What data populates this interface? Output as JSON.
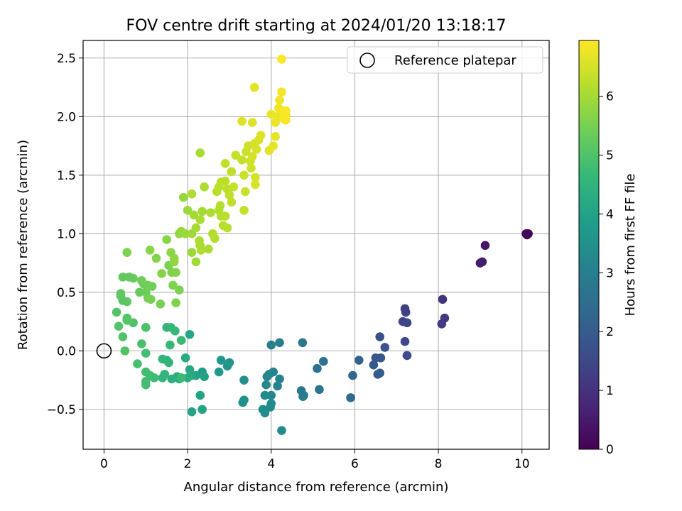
{
  "chart_data": {
    "type": "scatter",
    "title": "FOV centre drift starting at 2024/01/20 13:18:17",
    "xlabel": "Angular distance from reference (arcmin)",
    "ylabel": "Rotation from reference (arcmin)",
    "xlim": [
      -0.5,
      10.65
    ],
    "ylim": [
      -0.84,
      2.65
    ],
    "xticks": [
      0,
      2,
      4,
      6,
      8,
      10
    ],
    "yticks": [
      -0.5,
      0.0,
      0.5,
      1.0,
      1.5,
      2.0,
      2.5
    ],
    "xtick_labels": [
      "0",
      "2",
      "4",
      "6",
      "8",
      "10"
    ],
    "ytick_labels": [
      "−0.5",
      "0.0",
      "0.5",
      "1.0",
      "1.5",
      "2.0",
      "2.5"
    ],
    "grid": true,
    "legend": {
      "position": "top-right",
      "label": "Reference platepar",
      "marker": "open-circle"
    },
    "reference_point": [
      0,
      0
    ],
    "colorbar": {
      "label": "Hours from first FF file",
      "colormap": "viridis",
      "min": 0,
      "max": 6.95,
      "ticks": [
        0,
        1,
        2,
        3,
        4,
        5,
        6
      ],
      "tick_labels": [
        "0",
        "1",
        "2",
        "3",
        "4",
        "5",
        "6"
      ]
    },
    "points": [
      [
        10.1,
        1.0,
        0.02
      ],
      [
        10.15,
        1.0,
        0.04
      ],
      [
        10.12,
        0.99,
        0.06
      ],
      [
        9.12,
        0.9,
        0.4
      ],
      [
        9.0,
        0.75,
        0.5
      ],
      [
        9.05,
        0.76,
        0.55
      ],
      [
        8.1,
        0.44,
        1.0
      ],
      [
        8.15,
        0.28,
        1.1
      ],
      [
        8.08,
        0.23,
        1.2
      ],
      [
        7.2,
        0.36,
        1.3
      ],
      [
        7.22,
        0.33,
        1.35
      ],
      [
        7.15,
        0.25,
        1.4
      ],
      [
        7.25,
        0.24,
        1.45
      ],
      [
        7.2,
        0.08,
        1.5
      ],
      [
        7.25,
        -0.04,
        1.55
      ],
      [
        6.6,
        0.12,
        1.7
      ],
      [
        6.72,
        0.03,
        1.75
      ],
      [
        6.5,
        -0.06,
        1.85
      ],
      [
        6.62,
        -0.06,
        1.9
      ],
      [
        6.45,
        -0.12,
        1.95
      ],
      [
        6.6,
        -0.19,
        2.0
      ],
      [
        6.55,
        -0.2,
        2.05
      ],
      [
        6.1,
        -0.08,
        2.2
      ],
      [
        5.95,
        -0.21,
        2.3
      ],
      [
        5.9,
        -0.4,
        2.4
      ],
      [
        5.25,
        -0.09,
        2.55
      ],
      [
        5.1,
        -0.15,
        2.6
      ],
      [
        5.15,
        -0.33,
        2.65
      ],
      [
        4.75,
        0.07,
        2.75
      ],
      [
        4.72,
        -0.34,
        2.8
      ],
      [
        4.78,
        -0.38,
        2.85
      ],
      [
        4.76,
        -0.39,
        2.9
      ],
      [
        4.2,
        0.07,
        2.95
      ],
      [
        4.0,
        0.05,
        3.0
      ],
      [
        4.2,
        -0.24,
        3.05
      ],
      [
        4.15,
        -0.3,
        3.1
      ],
      [
        3.95,
        -0.2,
        3.1
      ],
      [
        4.05,
        -0.18,
        3.15
      ],
      [
        3.9,
        -0.22,
        3.2
      ],
      [
        4.0,
        -0.38,
        3.2
      ],
      [
        3.88,
        -0.29,
        3.25
      ],
      [
        3.85,
        -0.38,
        3.3
      ],
      [
        4.0,
        -0.45,
        3.3
      ],
      [
        3.98,
        -0.48,
        3.35
      ],
      [
        3.8,
        -0.5,
        3.4
      ],
      [
        3.85,
        -0.53,
        3.4
      ],
      [
        4.25,
        -0.68,
        3.35
      ],
      [
        3.35,
        -0.25,
        3.45
      ],
      [
        3.35,
        -0.42,
        3.5
      ],
      [
        3.32,
        -0.44,
        3.5
      ],
      [
        3.0,
        -0.1,
        3.6
      ],
      [
        2.95,
        -0.13,
        3.65
      ],
      [
        2.8,
        -0.08,
        3.7
      ],
      [
        2.75,
        -0.18,
        3.75
      ],
      [
        2.35,
        -0.18,
        3.85
      ],
      [
        2.35,
        -0.2,
        3.9
      ],
      [
        2.4,
        -0.22,
        3.95
      ],
      [
        2.2,
        -0.21,
        4.0
      ],
      [
        2.3,
        -0.38,
        4.0
      ],
      [
        2.35,
        -0.5,
        4.05
      ],
      [
        2.1,
        -0.52,
        4.05
      ],
      [
        2.05,
        0.14,
        4.1
      ],
      [
        2.05,
        -0.16,
        4.15
      ],
      [
        2.1,
        -0.21,
        4.2
      ],
      [
        2.0,
        -0.23,
        4.25
      ],
      [
        1.95,
        -0.06,
        4.25
      ],
      [
        1.75,
        -0.22,
        4.3
      ],
      [
        1.8,
        -0.24,
        4.35
      ],
      [
        1.62,
        -0.24,
        4.4
      ],
      [
        1.5,
        -0.08,
        4.45
      ],
      [
        1.55,
        -0.1,
        4.5
      ],
      [
        1.45,
        -0.2,
        4.5
      ],
      [
        1.4,
        -0.07,
        4.55
      ],
      [
        1.4,
        -0.23,
        4.55
      ],
      [
        1.5,
        0.2,
        4.6
      ],
      [
        1.6,
        0.2,
        4.6
      ],
      [
        1.7,
        0.17,
        4.65
      ],
      [
        1.58,
        0.05,
        4.65
      ],
      [
        1.85,
        0.09,
        4.7
      ],
      [
        1.85,
        -0.23,
        4.7
      ],
      [
        1.1,
        -0.21,
        4.75
      ],
      [
        1.2,
        -0.23,
        4.75
      ],
      [
        1.0,
        -0.18,
        4.8
      ],
      [
        1.0,
        -0.26,
        4.8
      ],
      [
        1.0,
        -0.29,
        4.85
      ],
      [
        1.0,
        -0.02,
        4.85
      ],
      [
        0.9,
        0.06,
        4.9
      ],
      [
        0.8,
        -0.11,
        4.9
      ],
      [
        1.0,
        0.2,
        4.95
      ],
      [
        0.7,
        0.24,
        5.0
      ],
      [
        0.55,
        0.28,
        5.0
      ],
      [
        0.45,
        0.12,
        5.0
      ],
      [
        0.3,
        0.33,
        5.05
      ],
      [
        0.35,
        0.21,
        5.05
      ],
      [
        0.5,
        0.0,
        5.05
      ],
      [
        0.55,
        0.26,
        5.1
      ],
      [
        0.45,
        0.43,
        5.1
      ],
      [
        0.55,
        0.42,
        5.15
      ],
      [
        0.4,
        0.47,
        5.15
      ],
      [
        0.4,
        0.49,
        5.2
      ],
      [
        0.45,
        0.63,
        5.25
      ],
      [
        0.6,
        0.63,
        5.25
      ],
      [
        0.7,
        0.62,
        5.3
      ],
      [
        0.85,
        0.5,
        5.3
      ],
      [
        0.95,
        0.57,
        5.35
      ],
      [
        1.0,
        0.5,
        5.35
      ],
      [
        1.05,
        0.56,
        5.4
      ],
      [
        0.9,
        0.6,
        5.4
      ],
      [
        1.05,
        0.45,
        5.45
      ],
      [
        1.15,
        0.55,
        5.45
      ],
      [
        1.12,
        0.44,
        5.5
      ],
      [
        1.35,
        0.4,
        5.5
      ],
      [
        1.55,
        0.73,
        5.55
      ],
      [
        1.8,
        0.52,
        5.55
      ],
      [
        1.65,
        0.56,
        5.6
      ],
      [
        1.72,
        0.41,
        5.6
      ],
      [
        1.62,
        0.67,
        5.6
      ],
      [
        1.72,
        0.67,
        5.65
      ],
      [
        1.38,
        0.66,
        5.65
      ],
      [
        1.25,
        0.79,
        5.65
      ],
      [
        1.1,
        0.86,
        5.7
      ],
      [
        0.55,
        0.84,
        5.55
      ],
      [
        1.5,
        0.95,
        5.7
      ],
      [
        1.6,
        0.84,
        5.75
      ],
      [
        1.68,
        0.79,
        5.75
      ],
      [
        1.68,
        0.76,
        5.8
      ],
      [
        1.8,
        1.0,
        5.85
      ],
      [
        1.85,
        1.02,
        5.85
      ],
      [
        1.9,
        1.31,
        5.85
      ],
      [
        2.0,
        1.2,
        5.9
      ],
      [
        1.95,
        1.0,
        5.9
      ],
      [
        2.1,
        0.84,
        5.9
      ],
      [
        2.2,
        0.76,
        5.95
      ],
      [
        2.1,
        1.0,
        5.95
      ],
      [
        2.2,
        1.05,
        6.0
      ],
      [
        2.15,
        1.16,
        6.0
      ],
      [
        2.35,
        1.19,
        6.0
      ],
      [
        2.3,
        1.12,
        6.05
      ],
      [
        2.28,
        0.94,
        6.05
      ],
      [
        2.3,
        0.9,
        6.05
      ],
      [
        2.32,
        0.86,
        6.1
      ],
      [
        2.4,
        1.4,
        6.1
      ],
      [
        2.1,
        1.34,
        6.1
      ],
      [
        2.3,
        1.69,
        6.05
      ],
      [
        2.5,
        0.87,
        6.1
      ],
      [
        2.55,
        1.18,
        6.1
      ],
      [
        2.6,
        1.0,
        6.15
      ],
      [
        2.65,
        0.96,
        6.15
      ],
      [
        2.75,
        1.2,
        6.15
      ],
      [
        2.78,
        1.24,
        6.15
      ],
      [
        2.8,
        1.15,
        6.2
      ],
      [
        2.85,
        1.07,
        6.2
      ],
      [
        2.9,
        1.15,
        6.2
      ],
      [
        2.95,
        1.05,
        6.2
      ],
      [
        2.7,
        1.36,
        6.2
      ],
      [
        2.75,
        1.4,
        6.25
      ],
      [
        2.8,
        1.44,
        6.25
      ],
      [
        2.9,
        1.45,
        6.25
      ],
      [
        2.95,
        1.38,
        6.25
      ],
      [
        3.0,
        1.33,
        6.3
      ],
      [
        3.05,
        1.27,
        6.3
      ],
      [
        2.9,
        1.6,
        6.3
      ],
      [
        3.05,
        1.53,
        6.3
      ],
      [
        3.1,
        1.4,
        6.35
      ],
      [
        3.15,
        1.67,
        6.35
      ],
      [
        3.3,
        1.63,
        6.35
      ],
      [
        3.35,
        1.2,
        6.35
      ],
      [
        3.38,
        1.36,
        6.4
      ],
      [
        3.35,
        1.5,
        6.4
      ],
      [
        3.4,
        1.7,
        6.4
      ],
      [
        3.45,
        1.75,
        6.45
      ],
      [
        3.5,
        1.62,
        6.45
      ],
      [
        3.52,
        1.56,
        6.45
      ],
      [
        3.55,
        1.66,
        6.5
      ],
      [
        3.6,
        1.77,
        6.5
      ],
      [
        3.62,
        1.48,
        6.5
      ],
      [
        3.62,
        1.42,
        6.55
      ],
      [
        3.65,
        1.72,
        6.55
      ],
      [
        3.7,
        1.8,
        6.55
      ],
      [
        3.75,
        1.84,
        6.6
      ],
      [
        3.3,
        1.96,
        6.6
      ],
      [
        3.55,
        1.95,
        6.6
      ],
      [
        3.6,
        2.25,
        6.65
      ],
      [
        3.95,
        1.71,
        6.65
      ],
      [
        4.05,
        1.75,
        6.7
      ],
      [
        4.1,
        1.83,
        6.7
      ],
      [
        4.1,
        1.95,
        6.75
      ],
      [
        4.0,
        2.02,
        6.75
      ],
      [
        4.15,
        2.0,
        6.75
      ],
      [
        4.18,
        2.07,
        6.8
      ],
      [
        4.2,
        2.14,
        6.8
      ],
      [
        4.25,
        2.21,
        6.85
      ],
      [
        4.3,
        2.05,
        6.85
      ],
      [
        4.35,
        2.02,
        6.85
      ],
      [
        4.35,
        1.97,
        6.9
      ],
      [
        4.35,
        2.05,
        6.9
      ],
      [
        4.3,
        1.98,
        6.9
      ],
      [
        4.25,
        2.49,
        6.93
      ]
    ]
  }
}
